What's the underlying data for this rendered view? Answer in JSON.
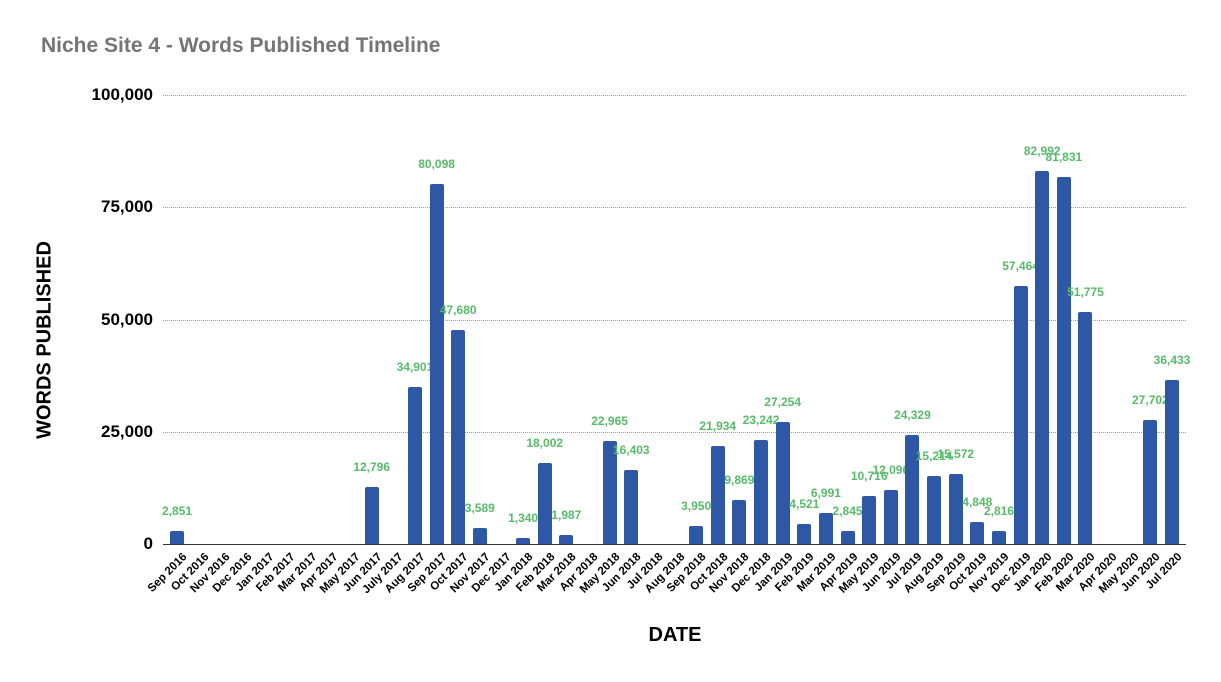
{
  "chart_data": {
    "type": "bar",
    "title": "Niche Site 4 - Words Published Timeline",
    "xlabel": "DATE",
    "ylabel": "WORDS PUBLISHED",
    "ylim": [
      0,
      100000
    ],
    "yticks": [
      "0",
      "25,000",
      "50,000",
      "75,000",
      "100,000"
    ],
    "ytick_values": [
      0,
      25000,
      50000,
      75000,
      100000
    ],
    "grid": true,
    "legend": "none",
    "bar_color": "#2e57a6",
    "label_color": "#57bb6a",
    "categories": [
      "Sep 2016",
      "Oct 2016",
      "Nov 2016",
      "Dec 2016",
      "Jan 2017",
      "Feb 2017",
      "Mar 2017",
      "Apr 2017",
      "May 2017",
      "Jun 2017",
      "July 2017",
      "Aug 2017",
      "Sep 2017",
      "Oct 2017",
      "Nov 2017",
      "Dec 2017",
      "Jan 2018",
      "Feb 2018",
      "Mar 2018",
      "Apr 2018",
      "May 2018",
      "Jun 2018",
      "Jul 2018",
      "Aug 2018",
      "Sep 2018",
      "Oct 2018",
      "Nov 2018",
      "Dec 2018",
      "Jan 2019",
      "Feb 2019",
      "Mar 2019",
      "Apr 2019",
      "May 2019",
      "Jun 2019",
      "Jul 2019",
      "Aug 2019",
      "Sep 2019",
      "Oct 2019",
      "Nov 2019",
      "Dec 2019",
      "Jan 2020",
      "Feb 2020",
      "Mar 2020",
      "Apr 2020",
      "May 2020",
      "Jun 2020",
      "Jul 2020"
    ],
    "values": [
      2851,
      0,
      0,
      0,
      0,
      0,
      0,
      0,
      0,
      12796,
      0,
      34901,
      80098,
      47680,
      3589,
      0,
      1340,
      18002,
      1987,
      0,
      22965,
      16403,
      0,
      0,
      3950,
      21934,
      9869,
      23242,
      27254,
      4521,
      6991,
      2845,
      10716,
      12096,
      24329,
      15214,
      15572,
      4848,
      2816,
      57464,
      82992,
      81831,
      51775,
      0,
      0,
      27702,
      36433
    ],
    "value_labels": [
      "2,851",
      "",
      "",
      "",
      "",
      "",
      "",
      "",
      "",
      "12,796",
      "",
      "34,901",
      "80,098",
      "47,680",
      "3,589",
      "",
      "1,340",
      "18,002",
      "1,987",
      "",
      "22,965",
      "16,403",
      "",
      "",
      "3,950",
      "21,934",
      "9,869",
      "23,242",
      "27,254",
      "4,521",
      "6,991",
      "2,845",
      "10,716",
      "12,096",
      "24,329",
      "15,214",
      "15,572",
      "4,848",
      "2,816",
      "57,464",
      "82,992",
      "81,831",
      "51,775",
      "",
      "",
      "27,702",
      "36,433"
    ]
  }
}
